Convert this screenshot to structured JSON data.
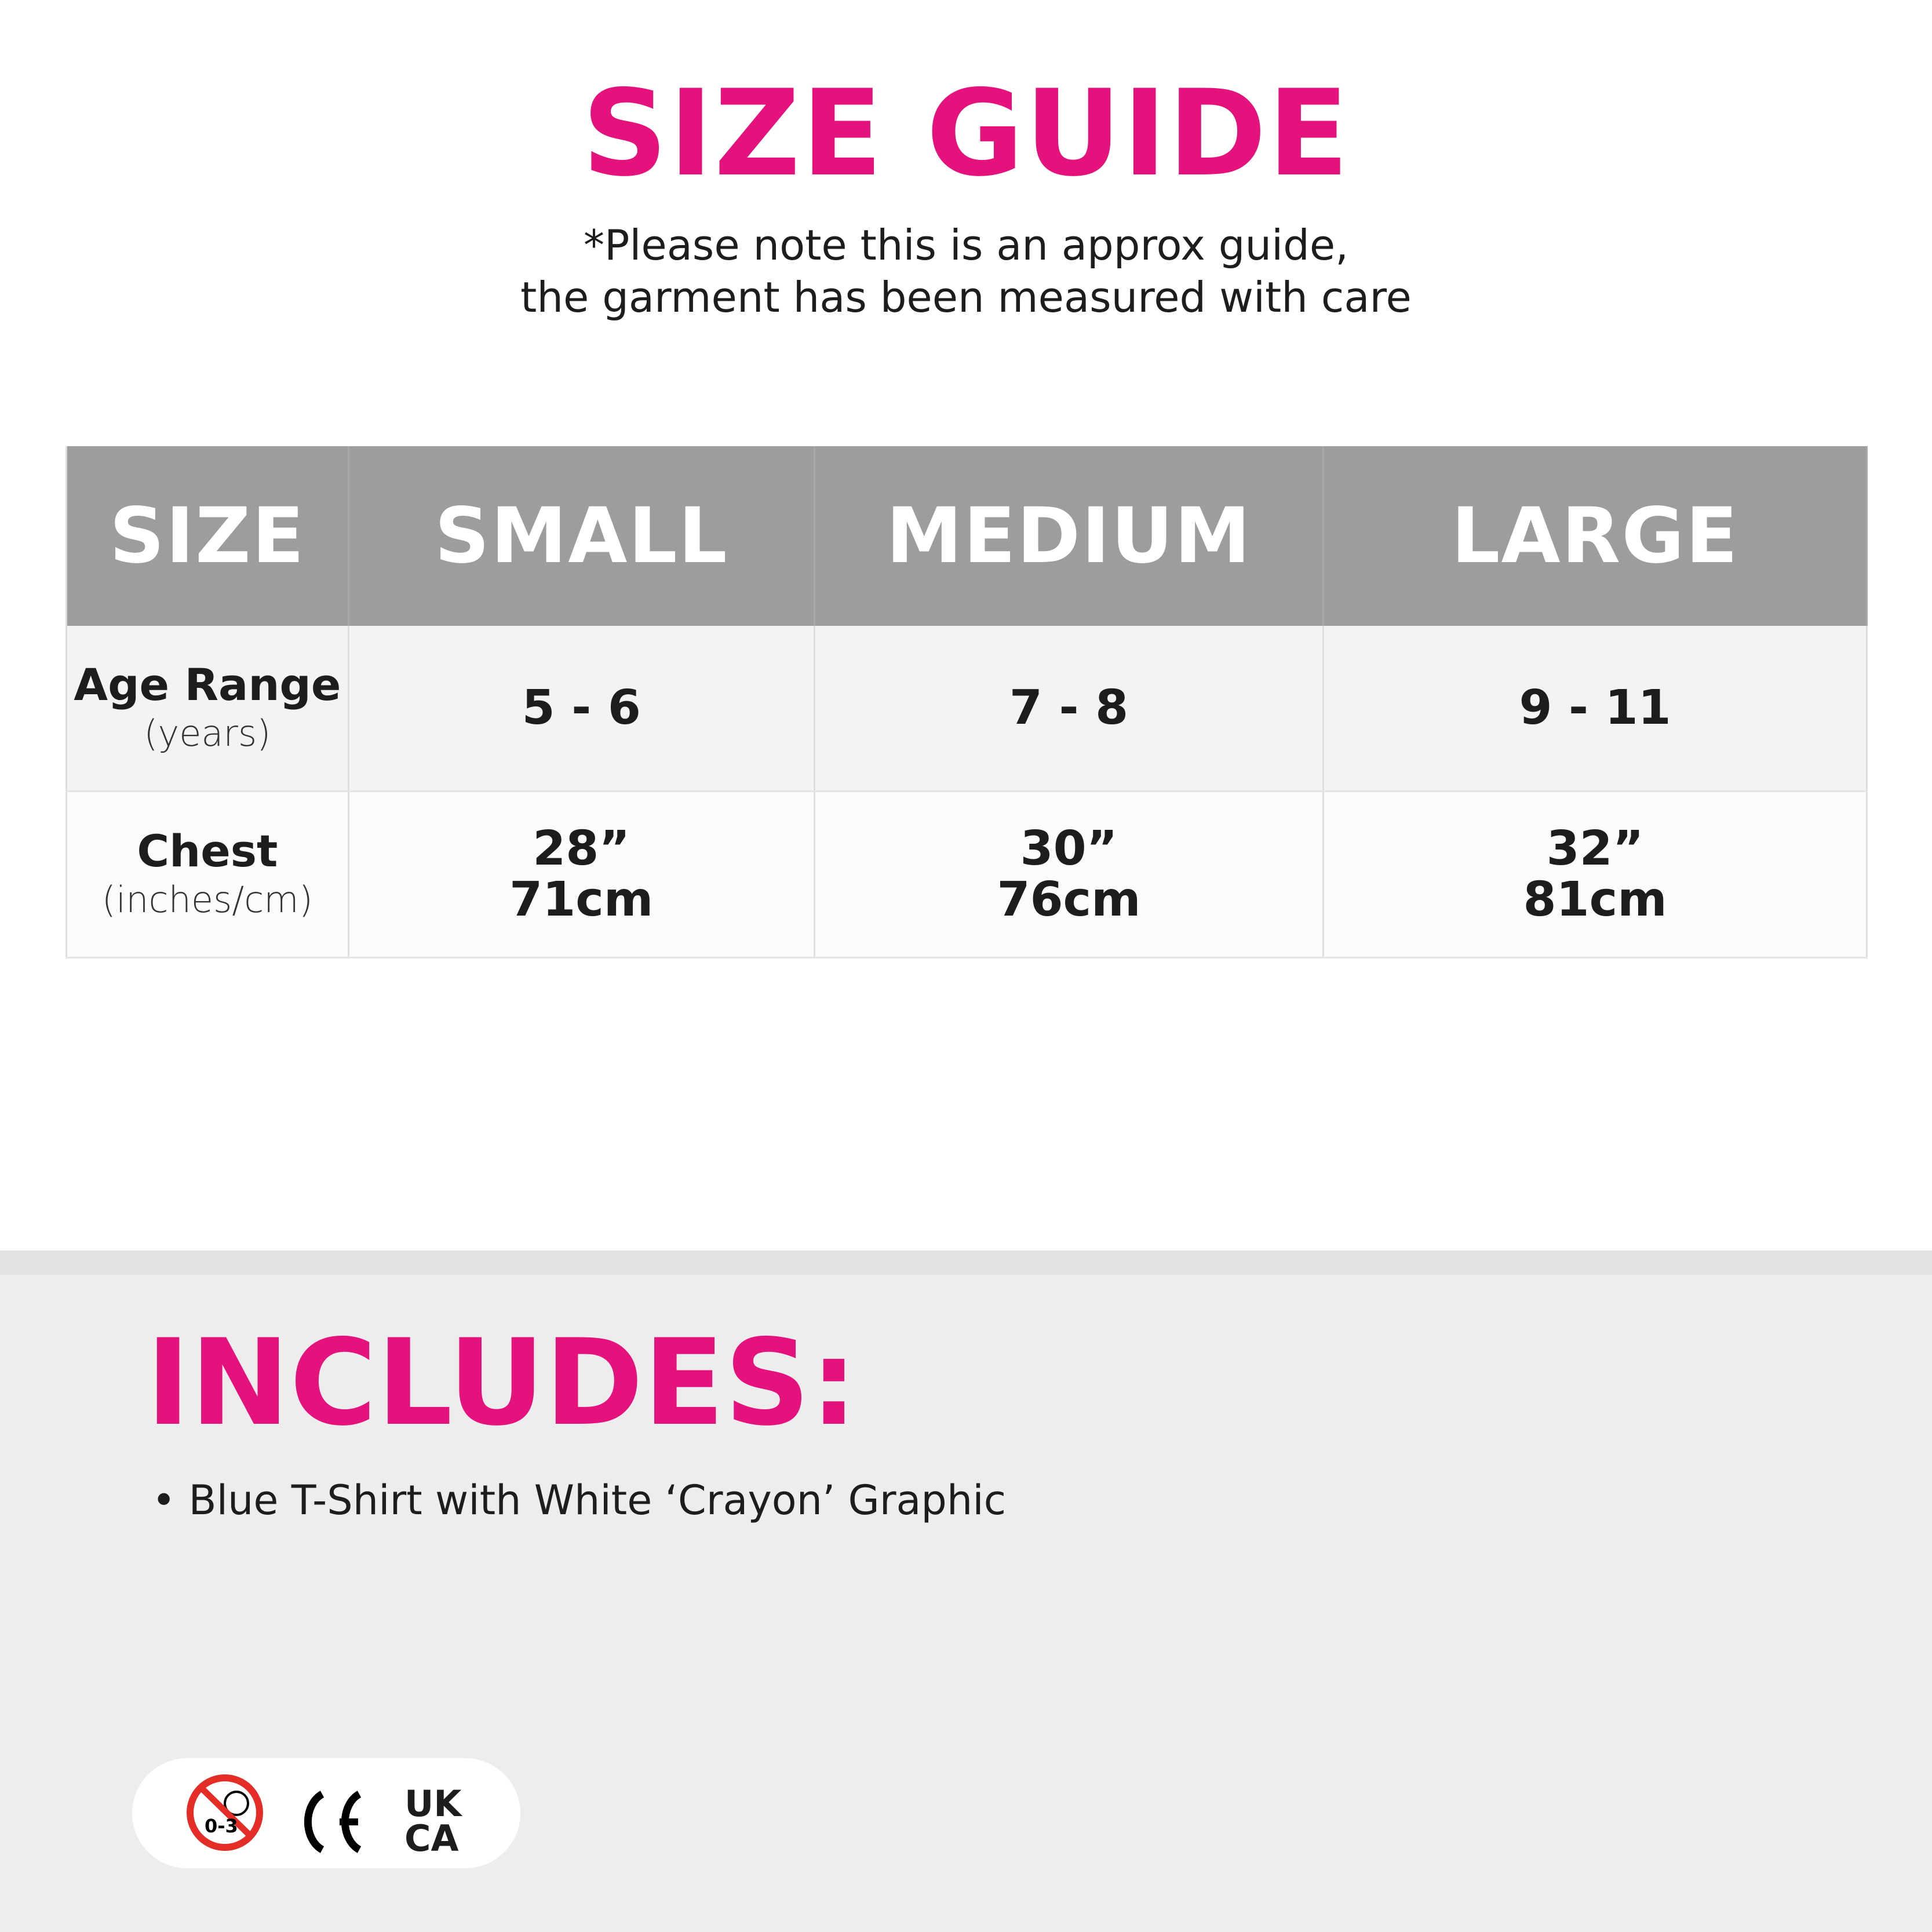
{
  "header": {
    "title": "SIZE GUIDE",
    "note_line1": "*Please note this is an approx guide,",
    "note_line2": "the garment has been measured with care"
  },
  "table": {
    "columns": [
      "SIZE",
      "SMALL",
      "MEDIUM",
      "LARGE"
    ],
    "rows": [
      {
        "label": "Age Range",
        "unit": "(years)",
        "values": [
          "5 - 6",
          "7 - 8",
          "9 - 11"
        ]
      },
      {
        "label": "Chest",
        "unit": "(inches/cm)",
        "values": [
          [
            "28”",
            "71cm"
          ],
          [
            "30”",
            "76cm"
          ],
          [
            "32”",
            "81cm"
          ]
        ]
      }
    ]
  },
  "includes": {
    "title": "INCLUDES:",
    "items": [
      "• Blue T-Shirt with White ‘Crayon’ Graphic"
    ]
  },
  "badges": {
    "age_warning": "0-3",
    "ce": "CE",
    "ukca_top": "UK",
    "ukca_bottom": "CA"
  },
  "colors": {
    "accent": "#e5127d",
    "header_bg": "#9d9d9d",
    "band_bg": "#ededed",
    "warning_red": "#e52d27"
  }
}
